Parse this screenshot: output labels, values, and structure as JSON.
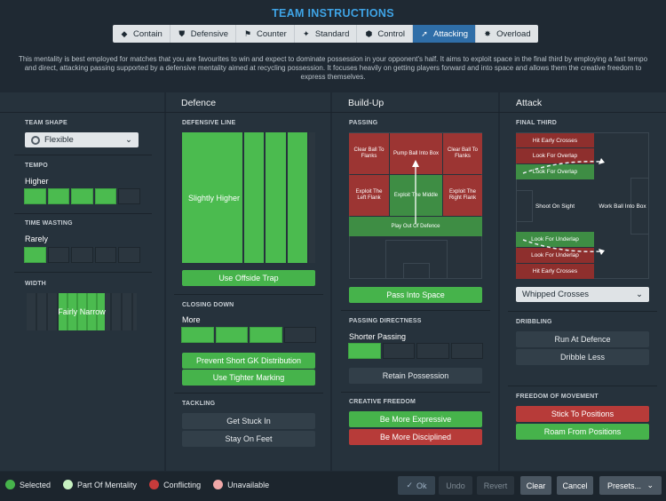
{
  "header": {
    "title": "TEAM INSTRUCTIONS"
  },
  "tabs": [
    {
      "label": "Contain",
      "icon": "contain-icon"
    },
    {
      "label": "Defensive",
      "icon": "shield-icon"
    },
    {
      "label": "Counter",
      "icon": "counter-icon"
    },
    {
      "label": "Standard",
      "icon": "standard-icon"
    },
    {
      "label": "Control",
      "icon": "control-icon"
    },
    {
      "label": "Attacking",
      "icon": "attacking-icon"
    },
    {
      "label": "Overload",
      "icon": "overload-icon"
    }
  ],
  "description": "This mentality is best employed for matches that you are favourites to win and expect to dominate possession in your opponent's half. It aims to exploit space in the final third by employing a fast tempo and direct, attacking passing supported by a defensive mentality aimed at recycling possession. It focuses heavily on getting players forward and into space and allows them the creative freedom to express themselves.",
  "team": {
    "shape_label": "TEAM SHAPE",
    "shape_value": "Flexible",
    "tempo_label": "TEMPO",
    "tempo_value": "Higher",
    "tempo_level": 4,
    "tempo_steps": 5,
    "timewasting_label": "TIME WASTING",
    "timewasting_value": "Rarely",
    "timewasting_level": 1,
    "timewasting_steps": 5,
    "width_label": "WIDTH",
    "width_value": "Fairly Narrow"
  },
  "defence": {
    "title": "Defence",
    "line_label": "DEFENSIVE LINE",
    "line_value": "Slightly Higher",
    "line_level": 4,
    "line_steps": 5,
    "offside_btn": "Use Offside Trap",
    "closing_label": "CLOSING DOWN",
    "closing_value": "More",
    "closing_level": 3,
    "closing_steps": 4,
    "gk_btn": "Prevent Short GK Distribution",
    "marking_btn": "Use Tighter Marking",
    "tackling_label": "TACKLING",
    "stuck_btn": "Get Stuck In",
    "feet_btn": "Stay On Feet"
  },
  "buildup": {
    "title": "Build-Up",
    "passing_label": "PASSING",
    "tiles": {
      "clear_left": "Clear Ball To Flanks",
      "pump": "Pump Ball Into Box",
      "clear_right": "Clear Ball To Flanks",
      "exploit_left": "Exploit The Left Flank",
      "exploit_middle": "Exploit The Middle",
      "exploit_right": "Exploit The Right Flank",
      "play_out": "Play Out Of Defence"
    },
    "space_btn": "Pass Into Space",
    "directness_label": "PASSING DIRECTNESS",
    "directness_value": "Shorter Passing",
    "directness_level": 1,
    "directness_steps": 4,
    "retain_btn": "Retain Possession",
    "freedom_label": "CREATIVE FREEDOM",
    "expressive_btn": "Be More Expressive",
    "disciplined_btn": "Be More Disciplined"
  },
  "attack": {
    "title": "Attack",
    "third_label": "FINAL THIRD",
    "tiles": {
      "hit_early_top": "Hit Early Crosses",
      "overlap_top": "Look For Overlap",
      "overlap_top2": "Look For Overlap",
      "shoot": "Shoot On Sight",
      "work_into_box": "Work Ball Into Box",
      "underlap_1": "Look For Underlap",
      "underlap_2": "Look For Underlap",
      "hit_early_bottom": "Hit Early Crosses"
    },
    "crosses_value": "Whipped Crosses",
    "dribbling_label": "DRIBBLING",
    "run_btn": "Run At Defence",
    "less_btn": "Dribble Less",
    "movement_label": "FREEDOM OF MOVEMENT",
    "stick_btn": "Stick To Positions",
    "roam_btn": "Roam From Positions"
  },
  "legend": [
    {
      "label": "Selected",
      "color": "#46b34b"
    },
    {
      "label": "Part Of Mentality",
      "color": "#c8f2c2"
    },
    {
      "label": "Conflicting",
      "color": "#c63b3b"
    },
    {
      "label": "Unavailable",
      "color": "#f0a8a8"
    }
  ],
  "footer": {
    "ok": "Ok",
    "undo": "Undo",
    "revert": "Revert",
    "clear": "Clear",
    "cancel": "Cancel",
    "presets": "Presets..."
  }
}
